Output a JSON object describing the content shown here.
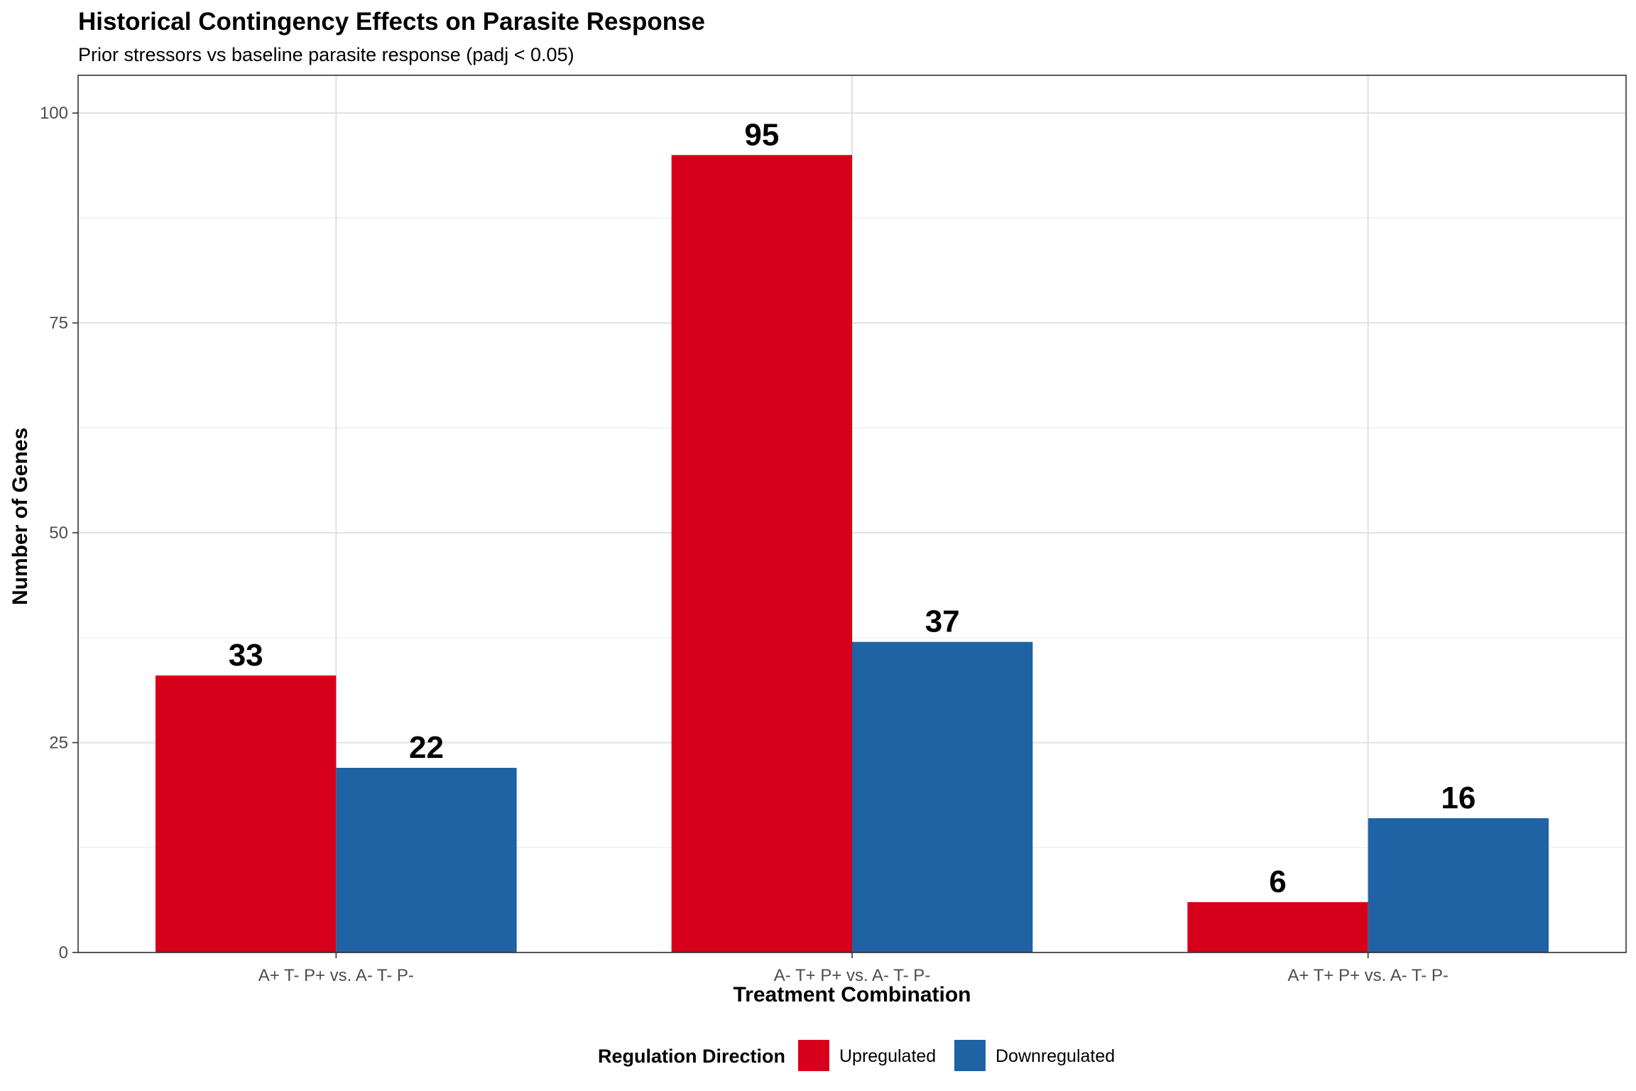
{
  "chart_data": {
    "type": "bar",
    "title": "Historical Contingency Effects on Parasite Response",
    "subtitle": "Prior stressors vs baseline parasite response (padj < 0.05)",
    "xlabel": "Treatment Combination",
    "ylabel": "Number of Genes",
    "categories": [
      "A+ T- P+ vs. A- T- P-",
      "A- T+ P+ vs. A- T- P-",
      "A+ T+ P+ vs. A- T- P-"
    ],
    "series": [
      {
        "name": "Upregulated",
        "color": "#d7001a",
        "values": [
          33,
          95,
          6
        ]
      },
      {
        "name": "Downregulated",
        "color": "#1f63a5",
        "values": [
          22,
          37,
          16
        ]
      }
    ],
    "ylim": [
      0,
      104.5
    ],
    "yticks": [
      0,
      25,
      50,
      75,
      100
    ],
    "grid": true,
    "legend": {
      "title": "Regulation Direction",
      "position": "bottom"
    }
  }
}
